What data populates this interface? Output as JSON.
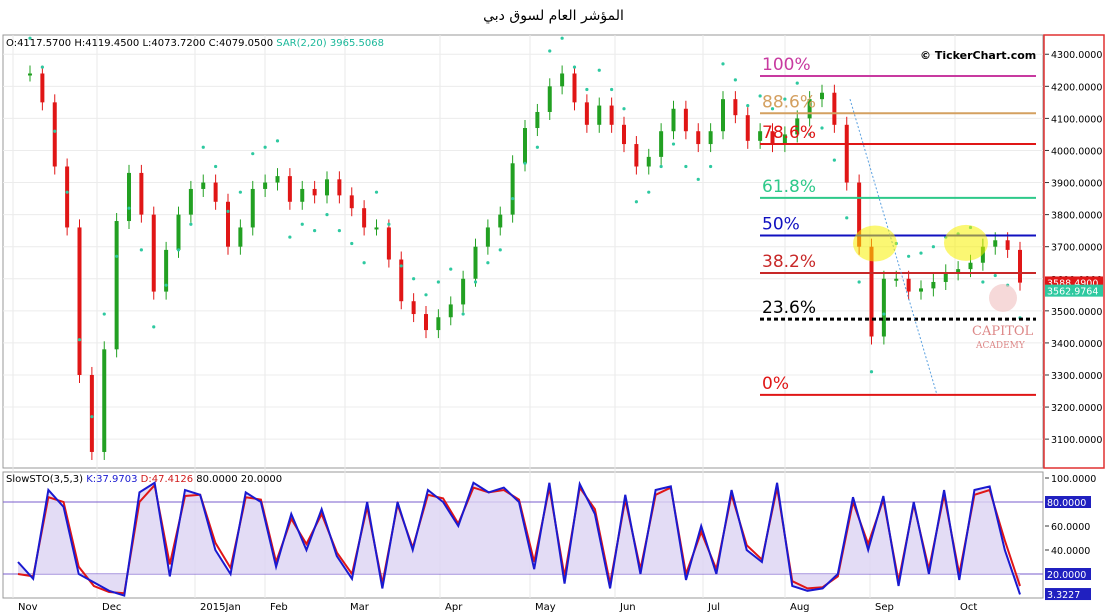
{
  "title": "المؤشر العام لسوق دبي",
  "header": {
    "ohlc": "O:4117.5700 H:4119.4500 L:4073.7200 C:4079.0500",
    "sar": "SAR(2,20) 3965.5068",
    "credit": "© TickerChart.com"
  },
  "stochastic_label": {
    "name": "SlowSTO(3,5,3)",
    "k": "K:37.9703",
    "d": "D:47.4126",
    "levels": "80.0000 20.0000"
  },
  "watermark": {
    "line1": "CAPITOL",
    "line2": "ACADEMY"
  },
  "colors": {
    "up": "#22a022",
    "down": "#e01616",
    "sar": "#2ec9a0",
    "k_line": "#1a1ad0",
    "d_line": "#e01616",
    "fill": "#dcd3f3",
    "frame": "#e03030"
  },
  "chart_data": [
    {
      "type": "candlestick",
      "title": "المؤشر العام لسوق دبي",
      "x_tick_labels": [
        "Nov",
        "Dec",
        "2015Jan",
        "Feb",
        "Mar",
        "Apr",
        "May",
        "Jun",
        "Jul",
        "Aug",
        "Sep",
        "Oct"
      ],
      "y_ticks": [
        3100,
        3200,
        3300,
        3400,
        3500,
        3600,
        3700,
        3800,
        3900,
        4000,
        4100,
        4200,
        4300
      ],
      "y_tick_labels": [
        "3100.0000",
        "3200.0000",
        "3300.0000",
        "3400.0000",
        "3500.0000",
        "3600.0000",
        "3700.0000",
        "3800.0000",
        "3900.0000",
        "4000.0000",
        "4100.0000",
        "4200.0000",
        "4300.0000"
      ],
      "ylim": [
        3010,
        4360
      ],
      "grid": true,
      "price_tags": [
        {
          "value": "3588.4900",
          "price": 3588.49,
          "color": "#e01616"
        },
        {
          "value": "3562.9764",
          "price": 3562.98,
          "color": "#2ec9a0"
        }
      ],
      "fibonacci": [
        {
          "label": "100%",
          "price": 4232,
          "color": "#c83aa0"
        },
        {
          "label": "88.6%",
          "price": 4116,
          "color": "#d4a060"
        },
        {
          "label": "78.6%",
          "price": 4020,
          "color": "#e01616"
        },
        {
          "label": "61.8%",
          "price": 3852,
          "color": "#2ec98a"
        },
        {
          "label": "50%",
          "price": 3735,
          "color": "#1010c0"
        },
        {
          "label": "38.2%",
          "price": 3618,
          "color": "#c82828"
        },
        {
          "label": "23.6%",
          "price": 3474,
          "color": "#000000"
        },
        {
          "label": "0%",
          "price": 3238,
          "color": "#e01616"
        }
      ],
      "trendline": {
        "from": {
          "x": 90,
          "price": 4160
        },
        "to": {
          "x": 177,
          "price": 3238
        }
      },
      "highlight_circles": [
        {
          "x": 127,
          "price": 3710
        },
        {
          "x": 218,
          "price": 3712
        }
      ],
      "series_close": [
        4240,
        4150,
        3950,
        3760,
        3300,
        3060,
        3380,
        3780,
        3930,
        3800,
        3560,
        3690,
        3800,
        3880,
        3900,
        3840,
        3700,
        3760,
        3880,
        3900,
        3920,
        3840,
        3880,
        3860,
        3910,
        3860,
        3820,
        3760,
        3760,
        3660,
        3530,
        3490,
        3440,
        3480,
        3520,
        3600,
        3700,
        3760,
        3800,
        3960,
        4070,
        4120,
        4200,
        4240,
        4150,
        4080,
        4140,
        4080,
        4020,
        3950,
        3980,
        4060,
        4130,
        4060,
        4020,
        4060,
        4160,
        4110,
        4030,
        4060,
        4020,
        4050,
        4100,
        4160,
        4180,
        4080,
        3900,
        3700,
        3420,
        3600,
        3600,
        3560,
        3570,
        3590,
        3620,
        3630,
        3650,
        3700,
        3720,
        3690,
        3588
      ],
      "sar_pattern": "dots above/below price"
    },
    {
      "type": "line",
      "name": "SlowSTO(3,5,3)",
      "y_ticks": [
        20,
        40,
        60,
        80,
        100
      ],
      "y_tick_labels": [
        "20.0000",
        "40.0000",
        "60.0000",
        "80.0000",
        "100.0000"
      ],
      "ylim": [
        0,
        105
      ],
      "levels": [
        80,
        20
      ],
      "value_tags": [
        "80.0000",
        "20.0000",
        "3.3227"
      ],
      "k_series": [
        30,
        16,
        90,
        76,
        20,
        13,
        6,
        2,
        88,
        96,
        18,
        90,
        86,
        40,
        20,
        88,
        80,
        26,
        70,
        40,
        74,
        35,
        16,
        80,
        8,
        80,
        40,
        90,
        80,
        60,
        96,
        88,
        92,
        80,
        24,
        96,
        12,
        95,
        70,
        8,
        86,
        20,
        90,
        93,
        15,
        60,
        20,
        90,
        40,
        30,
        96,
        10,
        6,
        8,
        20,
        84,
        40,
        85,
        10,
        80,
        20,
        90,
        15,
        90,
        93,
        40,
        3
      ],
      "d_series": [
        20,
        18,
        84,
        80,
        26,
        10,
        5,
        4,
        80,
        94,
        28,
        85,
        86,
        46,
        25,
        84,
        82,
        30,
        66,
        45,
        70,
        38,
        20,
        76,
        12,
        78,
        42,
        86,
        83,
        62,
        92,
        88,
        90,
        82,
        30,
        92,
        18,
        92,
        74,
        12,
        82,
        24,
        86,
        92,
        20,
        55,
        24,
        86,
        44,
        32,
        92,
        14,
        8,
        9,
        18,
        80,
        45,
        82,
        14,
        78,
        24,
        86,
        20,
        86,
        90,
        48,
        10
      ]
    }
  ]
}
